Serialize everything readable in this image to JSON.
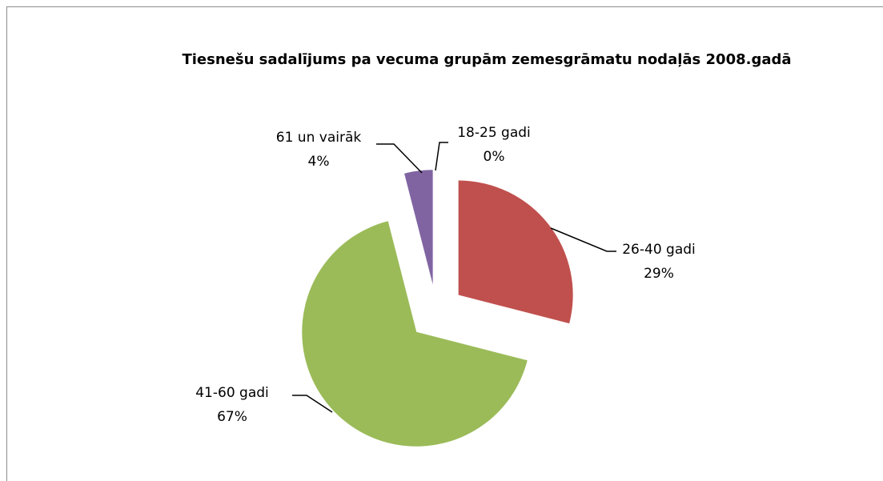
{
  "chart_data": {
    "type": "pie",
    "title": "Tiesnešu sadalījums pa vecuma grupām zemesgrāmatu nodaļās 2008.gadā",
    "categories": [
      "18-25 gadi",
      "26-40 gadi",
      "41-60 gadi",
      "61 un vairāk"
    ],
    "values": [
      0,
      29,
      67,
      4
    ],
    "value_labels": [
      "0%",
      "29%",
      "67%",
      "4%"
    ],
    "colors": [
      "#4f81bd",
      "#c0504d",
      "#9bbb59",
      "#8064a2"
    ]
  }
}
